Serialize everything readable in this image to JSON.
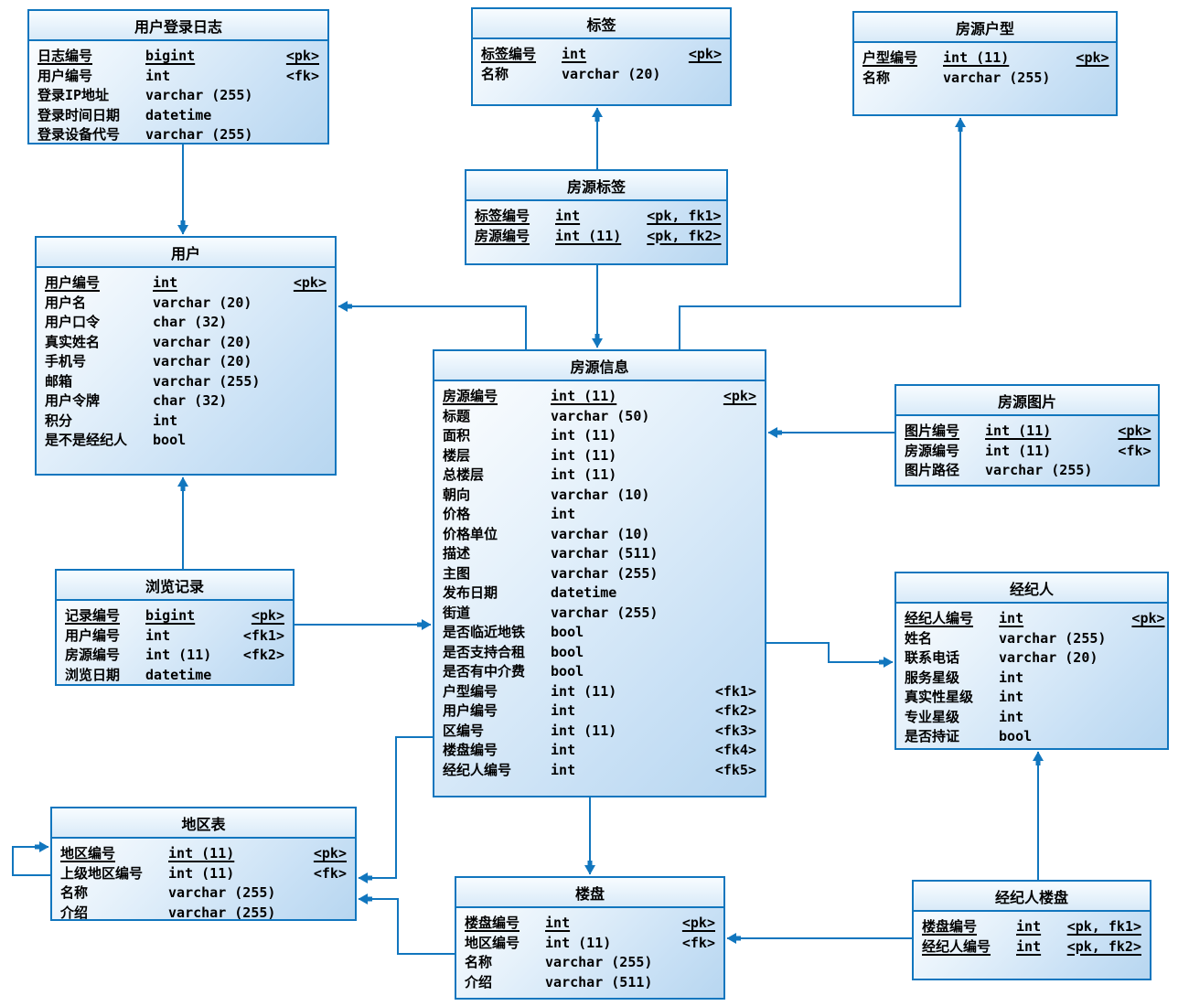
{
  "colors": {
    "line": "#1176BE",
    "border": "#1176BE",
    "fill_top": "#ffffff",
    "fill_bottom": "#b7d6f0",
    "text": "#000000"
  },
  "tables": [
    {
      "id": "user_login_log",
      "title": "用户登录日志",
      "fields": [
        {
          "name": "日志编号",
          "type": "bigint",
          "key": "<pk>",
          "pk": true
        },
        {
          "name": "用户编号",
          "type": "int",
          "key": "<fk>",
          "pk": false
        },
        {
          "name": "登录IP地址",
          "type": "varchar (255)",
          "key": "",
          "pk": false
        },
        {
          "name": "登录时间日期",
          "type": "datetime",
          "key": "",
          "pk": false
        },
        {
          "name": "登录设备代号",
          "type": "varchar (255)",
          "key": "",
          "pk": false
        }
      ]
    },
    {
      "id": "tag",
      "title": "标签",
      "fields": [
        {
          "name": "标签编号",
          "type": "int",
          "key": "<pk>",
          "pk": true
        },
        {
          "name": "名称",
          "type": "varchar (20)",
          "key": "",
          "pk": false
        }
      ]
    },
    {
      "id": "house_type",
      "title": "房源户型",
      "fields": [
        {
          "name": "户型编号",
          "type": "int (11)",
          "key": "<pk>",
          "pk": true
        },
        {
          "name": "名称",
          "type": "varchar (255)",
          "key": "",
          "pk": false
        }
      ]
    },
    {
      "id": "house_tag",
      "title": "房源标签",
      "fields": [
        {
          "name": "标签编号",
          "type": "int",
          "key": "<pk, fk1>",
          "pk": true
        },
        {
          "name": "房源编号",
          "type": "int (11)",
          "key": "<pk, fk2>",
          "pk": true
        }
      ]
    },
    {
      "id": "user",
      "title": "用户",
      "fields": [
        {
          "name": "用户编号",
          "type": "int",
          "key": "<pk>",
          "pk": true
        },
        {
          "name": "用户名",
          "type": "varchar (20)",
          "key": "",
          "pk": false
        },
        {
          "name": "用户口令",
          "type": "char (32)",
          "key": "",
          "pk": false
        },
        {
          "name": "真实姓名",
          "type": "varchar (20)",
          "key": "",
          "pk": false
        },
        {
          "name": "手机号",
          "type": "varchar (20)",
          "key": "",
          "pk": false
        },
        {
          "name": "邮箱",
          "type": "varchar (255)",
          "key": "",
          "pk": false
        },
        {
          "name": "用户令牌",
          "type": "char (32)",
          "key": "",
          "pk": false
        },
        {
          "name": "积分",
          "type": "int",
          "key": "",
          "pk": false
        },
        {
          "name": "是不是经纪人",
          "type": "bool",
          "key": "",
          "pk": false
        }
      ]
    },
    {
      "id": "house_info",
      "title": "房源信息",
      "fields": [
        {
          "name": "房源编号",
          "type": "int (11)",
          "key": "<pk>",
          "pk": true
        },
        {
          "name": "标题",
          "type": "varchar (50)",
          "key": "",
          "pk": false
        },
        {
          "name": "面积",
          "type": "int (11)",
          "key": "",
          "pk": false
        },
        {
          "name": "楼层",
          "type": "int (11)",
          "key": "",
          "pk": false
        },
        {
          "name": "总楼层",
          "type": "int (11)",
          "key": "",
          "pk": false
        },
        {
          "name": "朝向",
          "type": "varchar (10)",
          "key": "",
          "pk": false
        },
        {
          "name": "价格",
          "type": "int",
          "key": "",
          "pk": false
        },
        {
          "name": "价格单位",
          "type": "varchar (10)",
          "key": "",
          "pk": false
        },
        {
          "name": "描述",
          "type": "varchar (511)",
          "key": "",
          "pk": false
        },
        {
          "name": "主图",
          "type": "varchar (255)",
          "key": "",
          "pk": false
        },
        {
          "name": "发布日期",
          "type": "datetime",
          "key": "",
          "pk": false
        },
        {
          "name": "街道",
          "type": "varchar (255)",
          "key": "",
          "pk": false
        },
        {
          "name": "是否临近地铁",
          "type": "bool",
          "key": "",
          "pk": false
        },
        {
          "name": "是否支持合租",
          "type": "bool",
          "key": "",
          "pk": false
        },
        {
          "name": "是否有中介费",
          "type": "bool",
          "key": "",
          "pk": false
        },
        {
          "name": "户型编号",
          "type": "int (11)",
          "key": "<fk1>",
          "pk": false
        },
        {
          "name": "用户编号",
          "type": "int",
          "key": "<fk2>",
          "pk": false
        },
        {
          "name": "区编号",
          "type": "int (11)",
          "key": "<fk3>",
          "pk": false
        },
        {
          "name": "楼盘编号",
          "type": "int",
          "key": "<fk4>",
          "pk": false
        },
        {
          "name": "经纪人编号",
          "type": "int",
          "key": "<fk5>",
          "pk": false
        }
      ]
    },
    {
      "id": "house_image",
      "title": "房源图片",
      "fields": [
        {
          "name": "图片编号",
          "type": "int (11)",
          "key": "<pk>",
          "pk": true
        },
        {
          "name": "房源编号",
          "type": "int (11)",
          "key": "<fk>",
          "pk": false
        },
        {
          "name": "图片路径",
          "type": "varchar (255)",
          "key": "",
          "pk": false
        }
      ]
    },
    {
      "id": "agent",
      "title": "经纪人",
      "fields": [
        {
          "name": "经纪人编号",
          "type": "int",
          "key": "<pk>",
          "pk": true
        },
        {
          "name": "姓名",
          "type": "varchar (255)",
          "key": "",
          "pk": false
        },
        {
          "name": "联系电话",
          "type": "varchar (20)",
          "key": "",
          "pk": false
        },
        {
          "name": "服务星级",
          "type": "int",
          "key": "",
          "pk": false
        },
        {
          "name": "真实性星级",
          "type": "int",
          "key": "",
          "pk": false
        },
        {
          "name": "专业星级",
          "type": "int",
          "key": "",
          "pk": false
        },
        {
          "name": "是否持证",
          "type": "bool",
          "key": "",
          "pk": false
        }
      ]
    },
    {
      "id": "browse_record",
      "title": "浏览记录",
      "fields": [
        {
          "name": "记录编号",
          "type": "bigint",
          "key": "<pk>",
          "pk": true
        },
        {
          "name": "用户编号",
          "type": "int",
          "key": "<fk1>",
          "pk": false
        },
        {
          "name": "房源编号",
          "type": "int (11)",
          "key": "<fk2>",
          "pk": false
        },
        {
          "name": "浏览日期",
          "type": "datetime",
          "key": "",
          "pk": false
        }
      ]
    },
    {
      "id": "region",
      "title": "地区表",
      "fields": [
        {
          "name": "地区编号",
          "type": "int (11)",
          "key": "<pk>",
          "pk": true
        },
        {
          "name": "上级地区编号",
          "type": "int (11)",
          "key": "<fk>",
          "pk": false
        },
        {
          "name": "名称",
          "type": "varchar (255)",
          "key": "",
          "pk": false
        },
        {
          "name": "介绍",
          "type": "varchar (255)",
          "key": "",
          "pk": false
        }
      ]
    },
    {
      "id": "building",
      "title": "楼盘",
      "fields": [
        {
          "name": "楼盘编号",
          "type": "int",
          "key": "<pk>",
          "pk": true
        },
        {
          "name": "地区编号",
          "type": "int (11)",
          "key": "<fk>",
          "pk": false
        },
        {
          "name": "名称",
          "type": "varchar (255)",
          "key": "",
          "pk": false
        },
        {
          "name": "介绍",
          "type": "varchar (511)",
          "key": "",
          "pk": false
        }
      ]
    },
    {
      "id": "agent_building",
      "title": "经纪人楼盘",
      "fields": [
        {
          "name": "楼盘编号",
          "type": "int",
          "key": "<pk, fk1>",
          "pk": true
        },
        {
          "name": "经纪人编号",
          "type": "int",
          "key": "<pk, fk2>",
          "pk": true
        }
      ]
    }
  ],
  "relationships": [
    {
      "from": "user_login_log",
      "to": "user"
    },
    {
      "from": "house_tag",
      "to": "tag"
    },
    {
      "from": "house_tag",
      "to": "house_info"
    },
    {
      "from": "house_info",
      "to": "user"
    },
    {
      "from": "house_info",
      "to": "house_type"
    },
    {
      "from": "house_image",
      "to": "house_info"
    },
    {
      "from": "house_info",
      "to": "agent"
    },
    {
      "from": "browse_record",
      "to": "house_info"
    },
    {
      "from": "browse_record",
      "to": "user"
    },
    {
      "from": "house_info",
      "to": "region"
    },
    {
      "from": "building",
      "to": "region"
    },
    {
      "from": "house_info",
      "to": "building"
    },
    {
      "from": "agent_building",
      "to": "building"
    },
    {
      "from": "agent_building",
      "to": "agent"
    },
    {
      "from": "region",
      "to": "region"
    }
  ]
}
